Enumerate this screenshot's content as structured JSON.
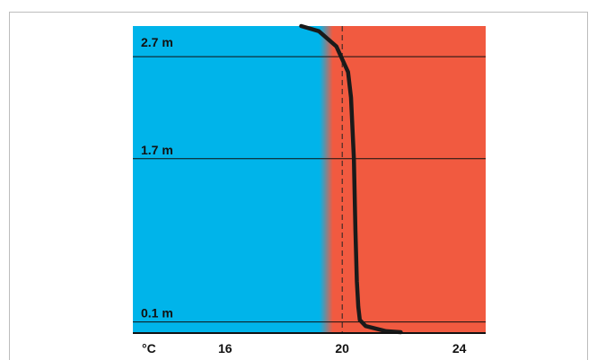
{
  "chart_data": {
    "type": "line",
    "title": "",
    "x_unit": "°C",
    "x_ticks": [
      16,
      20,
      24
    ],
    "xlim": [
      12.85,
      24.9
    ],
    "ylim": [
      0,
      3.0
    ],
    "heights": [
      {
        "label": "2.7 m",
        "value": 2.7
      },
      {
        "label": "1.7 m",
        "value": 1.7
      },
      {
        "label": "0.1 m",
        "value": 0.1
      }
    ],
    "reference_temperature": 20,
    "colors": {
      "cold": "#00b4ea",
      "warm": "#f15a40",
      "curve": "#1a1a1a"
    },
    "series": [
      {
        "x": [
          18.6,
          19.2,
          19.8,
          20.2,
          20.3,
          20.4,
          20.45,
          20.5,
          20.55,
          20.6,
          20.8,
          21.5,
          22.0
        ],
        "y": [
          3.0,
          2.95,
          2.8,
          2.55,
          2.3,
          1.7,
          1.0,
          0.5,
          0.25,
          0.12,
          0.06,
          0.01,
          0.0
        ]
      }
    ]
  }
}
